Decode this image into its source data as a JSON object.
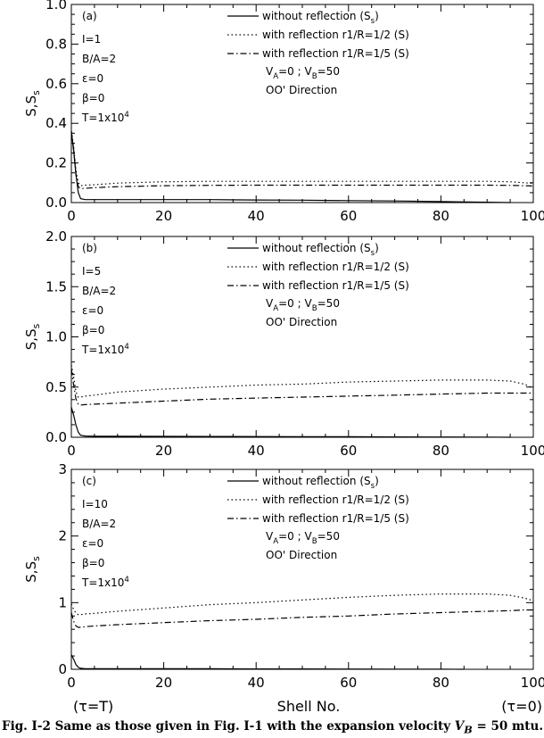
{
  "figure": {
    "caption_prefix": "Fig. I-2 Same as those given in Fig. I-1 with the expansion velocity ",
    "caption_var": "V",
    "caption_sub": "B",
    "caption_suffix": " = 50 mtu.",
    "xlabel": "Shell No.",
    "x_left_note": "(τ=T)",
    "x_right_note": "(τ=0)"
  },
  "chart_data": [
    {
      "type": "line",
      "panel_label": "(a)",
      "ylabel": "S,S",
      "ylabel_sub": "s",
      "xlim": [
        0,
        100
      ],
      "ylim": [
        0,
        1.0
      ],
      "x_ticks": [
        "0",
        "20",
        "40",
        "60",
        "80",
        "100"
      ],
      "y_ticks": [
        "0.0",
        "0.2",
        "0.4",
        "0.6",
        "0.8",
        "1.0"
      ],
      "params": [
        "I=1",
        "B/A=2",
        "ε=0",
        "β=0",
        "T=1x10^4"
      ],
      "legend": [
        {
          "style": "solid",
          "label": "without reflection (S_s)"
        },
        {
          "style": "dotted",
          "label": "with reflection r1/R=1/2 (S)"
        },
        {
          "style": "dashdot",
          "label": "with reflection r1/R=1/5 (S)"
        }
      ],
      "velocity_note": "V_A=0 ; V_B=50",
      "direction_note": "OO' Direction",
      "series": [
        {
          "name": "without reflection (S_s)",
          "style": "solid",
          "x": [
            0,
            0.5,
            1,
            1.5,
            2,
            3,
            5,
            10,
            20,
            30,
            40,
            50,
            60,
            70,
            80,
            90,
            95
          ],
          "y": [
            0.36,
            0.26,
            0.14,
            0.05,
            0.02,
            0.015,
            0.015,
            0.015,
            0.015,
            0.015,
            0.013,
            0.012,
            0.01,
            0.008,
            0.005,
            0.002,
            0
          ]
        },
        {
          "name": "with reflection r1/R=1/2 (S)",
          "style": "dotted",
          "x": [
            0,
            0.5,
            1,
            1.5,
            2,
            3,
            5,
            10,
            20,
            30,
            40,
            50,
            60,
            70,
            80,
            90,
            95,
            98,
            100
          ],
          "y": [
            0.36,
            0.28,
            0.16,
            0.1,
            0.085,
            0.088,
            0.09,
            0.098,
            0.105,
            0.107,
            0.107,
            0.107,
            0.107,
            0.107,
            0.107,
            0.107,
            0.105,
            0.1,
            0.097
          ]
        },
        {
          "name": "with reflection r1/R=1/5 (S)",
          "style": "dashdot",
          "x": [
            0,
            0.5,
            1,
            1.5,
            2,
            3,
            5,
            10,
            20,
            30,
            40,
            50,
            60,
            70,
            80,
            90,
            95,
            98,
            100
          ],
          "y": [
            0.36,
            0.27,
            0.14,
            0.08,
            0.07,
            0.072,
            0.075,
            0.08,
            0.085,
            0.087,
            0.088,
            0.088,
            0.088,
            0.088,
            0.088,
            0.088,
            0.087,
            0.085,
            0.084
          ]
        }
      ]
    },
    {
      "type": "line",
      "panel_label": "(b)",
      "ylabel": "S,S",
      "ylabel_sub": "s",
      "xlim": [
        0,
        100
      ],
      "ylim": [
        0,
        2.0
      ],
      "x_ticks": [
        "0",
        "20",
        "40",
        "60",
        "80",
        "100"
      ],
      "y_ticks": [
        "0.0",
        "0.5",
        "1.0",
        "1.5",
        "2.0"
      ],
      "params": [
        "I=5",
        "B/A=2",
        "ε=0",
        "β=0",
        "T=1x10^4"
      ],
      "legend": [
        {
          "style": "solid",
          "label": "without reflection (S_s)"
        },
        {
          "style": "dotted",
          "label": "with reflection r1/R=1/2 (S)"
        },
        {
          "style": "dashdot",
          "label": "with reflection r1/R=1/5 (S)"
        }
      ],
      "velocity_note": "V_A=0 ; V_B=50",
      "direction_note": "OO' Direction",
      "series": [
        {
          "name": "without reflection (S_s)",
          "style": "solid",
          "x": [
            0,
            0.5,
            1,
            1.5,
            2,
            3,
            5,
            10,
            20,
            30,
            40,
            50,
            60,
            70,
            80,
            90,
            95
          ],
          "y": [
            0.3,
            0.22,
            0.12,
            0.05,
            0.02,
            0.012,
            0.01,
            0.01,
            0.009,
            0.008,
            0.007,
            0.006,
            0.005,
            0.004,
            0.003,
            0.002,
            0
          ]
        },
        {
          "name": "with reflection r1/R=1/2 (S)",
          "style": "dotted",
          "x": [
            0,
            0.5,
            1,
            1.5,
            2,
            3,
            5,
            10,
            20,
            30,
            40,
            50,
            60,
            70,
            80,
            90,
            95,
            98,
            100
          ],
          "y": [
            0.72,
            0.6,
            0.45,
            0.4,
            0.4,
            0.41,
            0.42,
            0.45,
            0.48,
            0.5,
            0.52,
            0.53,
            0.55,
            0.56,
            0.57,
            0.57,
            0.56,
            0.53,
            0.49
          ]
        },
        {
          "name": "with reflection r1/R=1/5 (S)",
          "style": "dashdot",
          "x": [
            0,
            0.5,
            1,
            1.5,
            2,
            3,
            5,
            10,
            20,
            30,
            40,
            50,
            60,
            70,
            80,
            90,
            95,
            98,
            100
          ],
          "y": [
            0.68,
            0.52,
            0.38,
            0.33,
            0.32,
            0.325,
            0.33,
            0.34,
            0.36,
            0.38,
            0.39,
            0.4,
            0.41,
            0.42,
            0.43,
            0.44,
            0.44,
            0.44,
            0.44
          ]
        }
      ]
    },
    {
      "type": "line",
      "panel_label": "(c)",
      "ylabel": "S,S",
      "ylabel_sub": "s",
      "xlim": [
        0,
        100
      ],
      "ylim": [
        0,
        3
      ],
      "x_ticks": [
        "0",
        "20",
        "40",
        "60",
        "80",
        "100"
      ],
      "y_ticks": [
        "0",
        "1",
        "2",
        "3"
      ],
      "params": [
        "I=10",
        "B/A=2",
        "ε=0",
        "β=0",
        "T=1x10^4"
      ],
      "legend": [
        {
          "style": "solid",
          "label": "without reflection (S_s)"
        },
        {
          "style": "dotted",
          "label": "with reflection r1/R=1/2 (S)"
        },
        {
          "style": "dashdot",
          "label": "with reflection r1/R=1/5 (S)"
        }
      ],
      "velocity_note": "V_A=0 ; V_B=50",
      "direction_note": "OO' Direction",
      "series": [
        {
          "name": "without reflection (S_s)",
          "style": "solid",
          "x": [
            0,
            0.5,
            1,
            1.5,
            2,
            3,
            5,
            10,
            20,
            30,
            40,
            50,
            60,
            70,
            80,
            85
          ],
          "y": [
            0.22,
            0.15,
            0.07,
            0.03,
            0.015,
            0.01,
            0.01,
            0.01,
            0.009,
            0.008,
            0.006,
            0.005,
            0.004,
            0.003,
            0.001,
            0
          ]
        },
        {
          "name": "with reflection r1/R=1/2 (S)",
          "style": "dotted",
          "x": [
            0,
            0.5,
            1,
            1.5,
            2,
            3,
            5,
            10,
            20,
            30,
            40,
            50,
            60,
            70,
            80,
            90,
            95,
            98,
            100
          ],
          "y": [
            0.98,
            0.9,
            0.84,
            0.82,
            0.82,
            0.83,
            0.84,
            0.87,
            0.92,
            0.97,
            1.0,
            1.04,
            1.08,
            1.11,
            1.13,
            1.13,
            1.11,
            1.07,
            1.03
          ]
        },
        {
          "name": "with reflection r1/R=1/5 (S)",
          "style": "dashdot",
          "x": [
            0,
            0.5,
            1,
            1.5,
            2,
            3,
            5,
            10,
            20,
            30,
            40,
            50,
            60,
            70,
            80,
            90,
            95,
            98,
            100
          ],
          "y": [
            0.85,
            0.72,
            0.65,
            0.63,
            0.63,
            0.64,
            0.65,
            0.67,
            0.7,
            0.73,
            0.75,
            0.78,
            0.8,
            0.83,
            0.85,
            0.87,
            0.88,
            0.89,
            0.89
          ]
        }
      ]
    }
  ]
}
